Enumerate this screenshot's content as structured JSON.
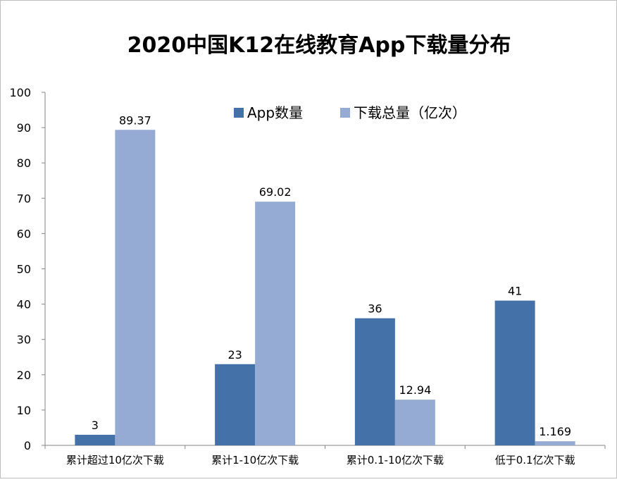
{
  "chart_data": {
    "type": "bar",
    "title": "2020中国K12在线教育App下载量分布",
    "xlabel": "",
    "ylabel": "",
    "ylim": [
      0,
      100
    ],
    "yticks": [
      0,
      10,
      20,
      30,
      40,
      50,
      60,
      70,
      80,
      90,
      100
    ],
    "grid": false,
    "legend_position": "top",
    "categories": [
      "累计超过10亿次下载",
      "累计1-10亿次下载",
      "累计0.1-10亿次下载",
      "低于0.1亿次下载"
    ],
    "series": [
      {
        "name": "App数量",
        "color": "#4472a8",
        "values": [
          3,
          23,
          36,
          41
        ],
        "labels": [
          "3",
          "23",
          "36",
          "41"
        ]
      },
      {
        "name": "下载总量（亿次）",
        "color": "#95abd3",
        "values": [
          89.37,
          69.02,
          12.94,
          1.169
        ],
        "labels": [
          "89.37",
          "69.02",
          "12.94",
          "1.169"
        ]
      }
    ]
  }
}
